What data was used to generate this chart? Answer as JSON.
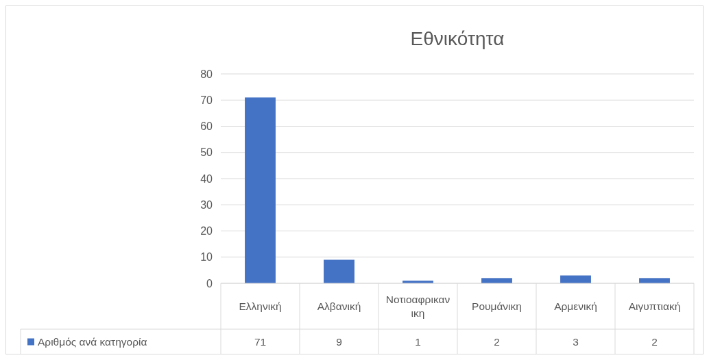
{
  "chart_data": {
    "type": "bar",
    "title": "Εθνικότητα",
    "categories": [
      "Ελληνική",
      "Αλβανική",
      "Νοτιοαφρικανικη",
      "Ρουμάνικη",
      "Αρμενική",
      "Αιγυπτιακή"
    ],
    "series": [
      {
        "name": "Αριθμός ανά κατηγορία",
        "color": "#4472c4",
        "values": [
          71,
          9,
          1,
          2,
          3,
          2
        ]
      }
    ],
    "ylim": [
      0,
      80
    ],
    "yticks": [
      0,
      10,
      20,
      30,
      40,
      50,
      60,
      70,
      80
    ],
    "grid": "y",
    "data_labels": true,
    "legend": "bottom"
  }
}
